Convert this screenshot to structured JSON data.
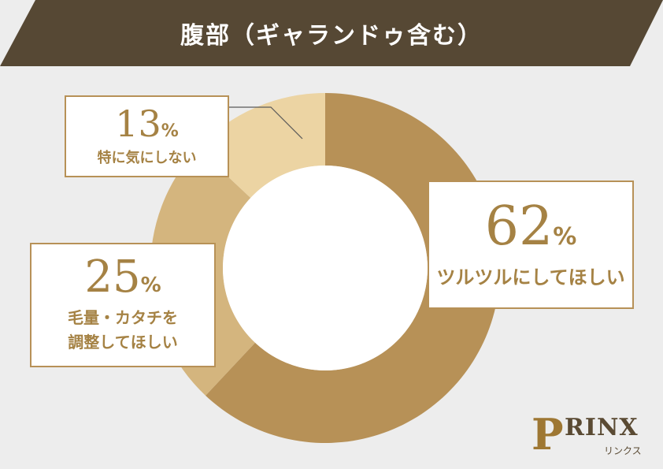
{
  "title": "腹部（ギャランドゥ含む）",
  "colors": {
    "banner": "#564834",
    "slice_62": "#b79157",
    "slice_25": "#d4b57e",
    "slice_13": "#ecd4a3",
    "accent": "#a58244"
  },
  "chart_data": {
    "type": "pie",
    "donut": true,
    "title": "腹部（ギャランドゥ含む）",
    "slices": [
      {
        "label": "ツルツルにしてほしい",
        "value": 62
      },
      {
        "label": "毛量・カタチを調整してほしい",
        "value": 25
      },
      {
        "label": "特に気にしない",
        "value": 13
      }
    ]
  },
  "callouts": {
    "c62": {
      "value": "62",
      "unit": "%",
      "label": "ツルツルにしてほしい"
    },
    "c25": {
      "value": "25",
      "unit": "%",
      "line1": "毛量・カタチを",
      "line2": "調整してほしい"
    },
    "c13": {
      "value": "13",
      "unit": "%",
      "label": "特に気にしない"
    }
  },
  "logo": {
    "mark": "P",
    "word": "RINX",
    "sub": "リンクス"
  }
}
